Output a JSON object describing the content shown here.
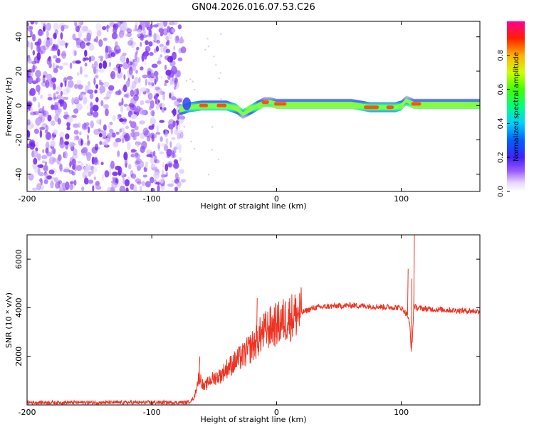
{
  "title": "GN04.2026.016.07.53.C26",
  "chart_data": [
    {
      "type": "heatmap",
      "name": "spectrogram",
      "xlabel": "Height of straight line (km)",
      "ylabel": "Frequency (Hz)",
      "xlim": [
        -200,
        163
      ],
      "ylim": [
        -50,
        49
      ],
      "xticks": [
        -200,
        -100,
        0,
        100
      ],
      "yticks": [
        -40,
        -20,
        0,
        20,
        40
      ],
      "noise_region_x": [
        -200,
        -78
      ],
      "signal_region_x": [
        -78,
        163
      ],
      "signal_center_hz": [
        [
          -78,
          -3
        ],
        [
          -70,
          -1
        ],
        [
          -60,
          0
        ],
        [
          -50,
          0
        ],
        [
          -40,
          0
        ],
        [
          -32,
          -2
        ],
        [
          -27,
          -5
        ],
        [
          -22,
          -3
        ],
        [
          -15,
          0
        ],
        [
          -10,
          2
        ],
        [
          -5,
          2
        ],
        [
          0,
          1
        ],
        [
          10,
          1
        ],
        [
          20,
          1
        ],
        [
          40,
          1
        ],
        [
          60,
          1
        ],
        [
          75,
          -1
        ],
        [
          85,
          -1
        ],
        [
          95,
          -1
        ],
        [
          100,
          0
        ],
        [
          104,
          3
        ],
        [
          110,
          1
        ],
        [
          130,
          1
        ],
        [
          150,
          1
        ],
        [
          163,
          1
        ]
      ],
      "colorbar": {
        "label": "Normalized spectral amplitude",
        "range": [
          0.0,
          1.0
        ],
        "ticks": [
          0.0,
          0.2,
          0.4,
          0.6,
          0.8
        ],
        "tick_labels": [
          "0.0",
          "0.2",
          "0.4",
          "0.6",
          "0.8"
        ]
      }
    },
    {
      "type": "line",
      "name": "snr",
      "xlabel": "Height of straight line (km)",
      "ylabel": "SNR (10 * v/v)",
      "xlim": [
        -200,
        163
      ],
      "ylim": [
        0,
        7000
      ],
      "xticks": [
        -200,
        -100,
        0,
        100
      ],
      "yticks": [
        2000,
        4000,
        6000
      ],
      "color": "#ee3322",
      "series": [
        {
          "name": "SNR",
          "x": [
            -200,
            -150,
            -100,
            -70,
            -66,
            -62,
            -58,
            -54,
            -50,
            -45,
            -40,
            -35,
            -30,
            -25,
            -20,
            -16,
            -14,
            -12,
            -10,
            -5,
            0,
            10,
            20,
            30,
            40,
            60,
            80,
            100,
            105,
            107,
            108,
            109,
            110,
            112,
            120,
            140,
            163
          ],
          "y": [
            100,
            100,
            100,
            100,
            300,
            1200,
            700,
            1000,
            1100,
            1200,
            1500,
            1700,
            1900,
            2100,
            2400,
            2600,
            2800,
            2900,
            3000,
            3200,
            3300,
            3600,
            3800,
            4000,
            4050,
            4100,
            4050,
            4000,
            3700,
            3200,
            2200,
            2800,
            4100,
            4000,
            3950,
            3900,
            3850
          ]
        }
      ],
      "spikes": [
        {
          "x": -16,
          "y": 4400
        },
        {
          "x": -62,
          "y": 2000
        },
        {
          "x": 105,
          "y": 5600
        },
        {
          "x": 108,
          "y": 5200
        },
        {
          "x": 110,
          "y": 7000
        }
      ]
    }
  ]
}
